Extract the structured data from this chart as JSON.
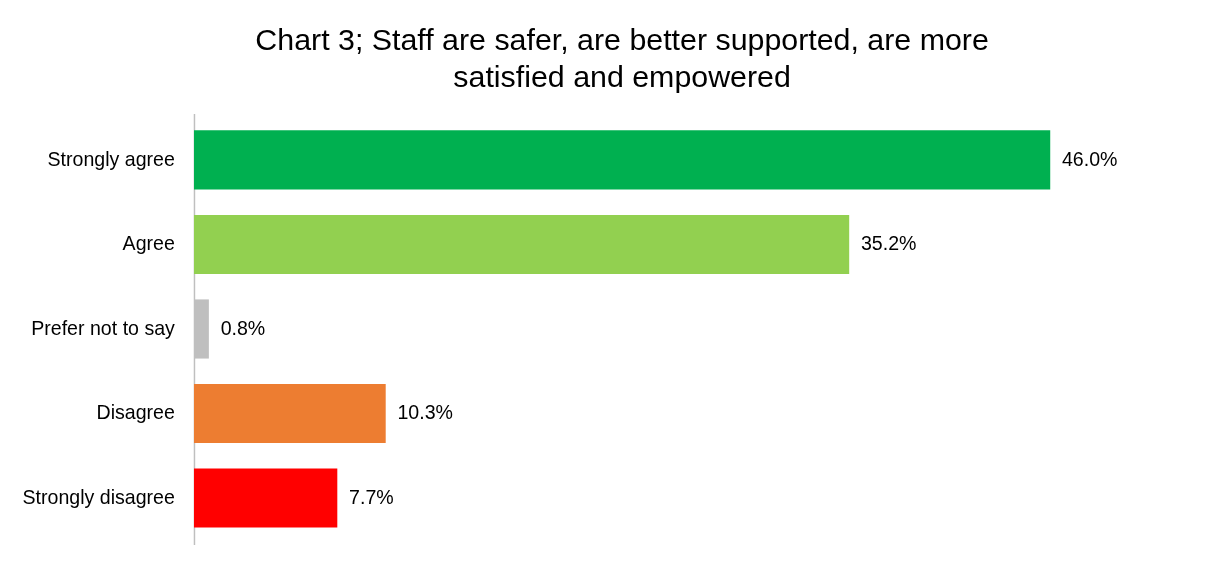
{
  "chart_data": {
    "type": "bar",
    "orientation": "horizontal",
    "title": "Chart 3; Staff are safer, are better supported, are more satisfied and empowered",
    "categories": [
      "Strongly agree",
      "Agree",
      "Prefer not to say",
      "Disagree",
      "Strongly disagree"
    ],
    "values": [
      46.0,
      35.2,
      0.8,
      10.3,
      7.7
    ],
    "colors": [
      "#00b050",
      "#92d050",
      "#bfbfbf",
      "#ed7d31",
      "#ff0000"
    ],
    "value_labels": [
      "46.0%",
      "35.2%",
      "0.8%",
      "10.3%",
      "7.7%"
    ],
    "data_labels": false
  }
}
